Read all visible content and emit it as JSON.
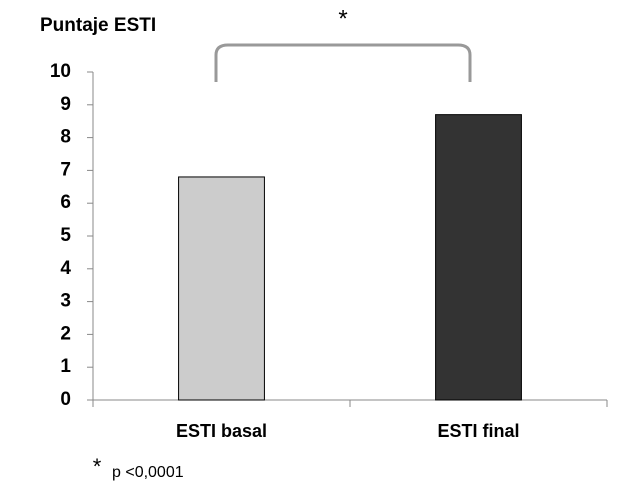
{
  "chart_data": {
    "type": "bar",
    "title": "Puntaje ESTI",
    "categories": [
      "ESTI basal",
      "ESTI final"
    ],
    "values": [
      6.8,
      8.7
    ],
    "colors": [
      "#cccccc",
      "#333333"
    ],
    "ylim": [
      0,
      10
    ],
    "yticks": [
      0,
      1,
      2,
      3,
      4,
      5,
      6,
      7,
      8,
      9,
      10
    ],
    "grid": false,
    "annotation": "*",
    "footnote": {
      "symbol": "*",
      "text": "p <0,0001"
    }
  }
}
